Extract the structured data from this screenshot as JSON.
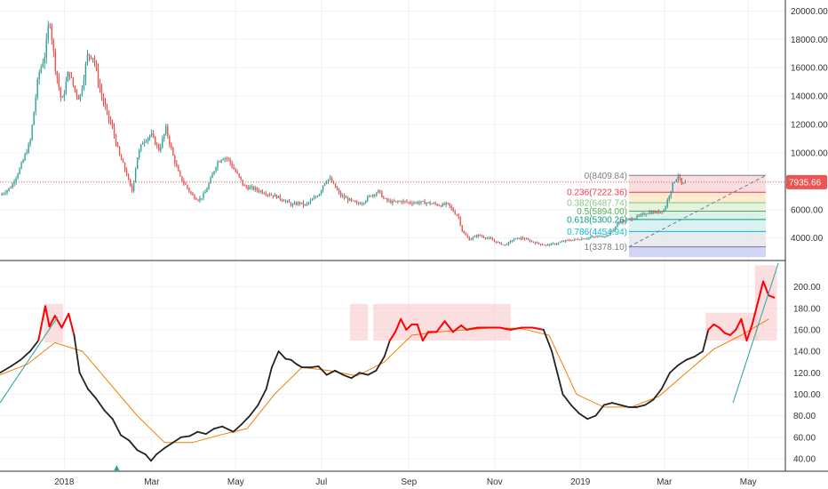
{
  "chart_data": [
    {
      "type": "candlestick",
      "panel": "price",
      "yticks": [
        "20000.00",
        "18000.00",
        "16000.00",
        "14000.00",
        "12000.00",
        "10000.00",
        "8000.00",
        "6000.00",
        "4000.00"
      ],
      "ylim": [
        2600,
        20400
      ],
      "current_price_label": "7935.66",
      "current_price": 7935.66,
      "colors": {
        "up": "#26a69a",
        "down": "#ef5350",
        "wick_up": "#1b7f72",
        "wick_down": "#c62828"
      },
      "x_range_days": [
        0,
        600
      ],
      "series_points": [
        [
          0,
          7000
        ],
        [
          8,
          7600
        ],
        [
          15,
          9000
        ],
        [
          22,
          10800
        ],
        [
          28,
          15500
        ],
        [
          33,
          17000
        ],
        [
          36,
          19600
        ],
        [
          40,
          16200
        ],
        [
          45,
          13500
        ],
        [
          50,
          15800
        ],
        [
          54,
          14500
        ],
        [
          58,
          13800
        ],
        [
          64,
          17000
        ],
        [
          68,
          16800
        ],
        [
          72,
          14800
        ],
        [
          77,
          13000
        ],
        [
          82,
          11700
        ],
        [
          87,
          9800
        ],
        [
          92,
          8600
        ],
        [
          96,
          7200
        ],
        [
          100,
          9700
        ],
        [
          104,
          10800
        ],
        [
          110,
          11300
        ],
        [
          116,
          10200
        ],
        [
          121,
          11700
        ],
        [
          126,
          9800
        ],
        [
          131,
          8300
        ],
        [
          136,
          7600
        ],
        [
          140,
          7000
        ],
        [
          145,
          6700
        ],
        [
          149,
          7100
        ],
        [
          153,
          8000
        ],
        [
          158,
          9300
        ],
        [
          162,
          9700
        ],
        [
          166,
          9600
        ],
        [
          170,
          8900
        ],
        [
          174,
          8300
        ],
        [
          178,
          7600
        ],
        [
          184,
          7500
        ],
        [
          190,
          7300
        ],
        [
          196,
          7100
        ],
        [
          202,
          6900
        ],
        [
          208,
          6600
        ],
        [
          213,
          6300
        ],
        [
          218,
          6500
        ],
        [
          222,
          6300
        ],
        [
          228,
          6700
        ],
        [
          233,
          7200
        ],
        [
          236,
          7900
        ],
        [
          240,
          8200
        ],
        [
          244,
          7600
        ],
        [
          248,
          7000
        ],
        [
          254,
          6700
        ],
        [
          260,
          6400
        ],
        [
          264,
          6500
        ],
        [
          270,
          7000
        ],
        [
          276,
          7300
        ],
        [
          280,
          6700
        ],
        [
          286,
          6500
        ],
        [
          292,
          6600
        ],
        [
          298,
          6500
        ],
        [
          304,
          6500
        ],
        [
          310,
          6500
        ],
        [
          316,
          6400
        ],
        [
          322,
          6300
        ],
        [
          326,
          6400
        ],
        [
          331,
          5800
        ],
        [
          334,
          5500
        ],
        [
          337,
          4400
        ],
        [
          342,
          3900
        ],
        [
          348,
          4200
        ],
        [
          355,
          4000
        ],
        [
          362,
          3700
        ],
        [
          367,
          3500
        ],
        [
          370,
          3600
        ],
        [
          374,
          3900
        ],
        [
          380,
          4000
        ],
        [
          386,
          3800
        ],
        [
          392,
          3600
        ],
        [
          398,
          3500
        ],
        [
          405,
          3600
        ],
        [
          412,
          3800
        ],
        [
          420,
          3900
        ],
        [
          428,
          4000
        ],
        [
          435,
          4100
        ],
        [
          443,
          4200
        ],
        [
          451,
          5100
        ],
        [
          458,
          5300
        ],
        [
          465,
          5500
        ],
        [
          472,
          5800
        ],
        [
          479,
          5800
        ],
        [
          484,
          6000
        ],
        [
          488,
          7200
        ],
        [
          491,
          8000
        ],
        [
          494,
          8400
        ],
        [
          497,
          7700
        ],
        [
          500,
          7935
        ]
      ]
    },
    {
      "type": "line",
      "panel": "indicator",
      "yticks": [
        "200.00",
        "180.00",
        "160.00",
        "140.00",
        "120.00",
        "100.00",
        "80.00",
        "60.00",
        "40.00"
      ],
      "ylim": [
        30,
        222
      ],
      "series": [
        {
          "color": "#222222",
          "highlight_color": "#ff0000"
        },
        {
          "color": "#f57c00"
        }
      ],
      "series_points": [
        [
          0,
          120
        ],
        [
          8,
          126
        ],
        [
          15,
          132
        ],
        [
          22,
          140
        ],
        [
          28,
          150
        ],
        [
          33,
          182
        ],
        [
          36,
          163
        ],
        [
          40,
          173
        ],
        [
          45,
          162
        ],
        [
          50,
          175
        ],
        [
          54,
          155
        ],
        [
          58,
          120
        ],
        [
          64,
          105
        ],
        [
          70,
          96
        ],
        [
          76,
          85
        ],
        [
          82,
          77
        ],
        [
          88,
          62
        ],
        [
          94,
          57
        ],
        [
          100,
          48
        ],
        [
          106,
          44
        ],
        [
          110,
          38
        ],
        [
          114,
          44
        ],
        [
          120,
          50
        ],
        [
          126,
          55
        ],
        [
          132,
          60
        ],
        [
          138,
          61
        ],
        [
          144,
          65
        ],
        [
          150,
          63
        ],
        [
          156,
          68
        ],
        [
          162,
          70
        ],
        [
          170,
          65
        ],
        [
          176,
          72
        ],
        [
          182,
          80
        ],
        [
          188,
          90
        ],
        [
          194,
          105
        ],
        [
          198,
          125
        ],
        [
          203,
          140
        ],
        [
          208,
          133
        ],
        [
          212,
          132
        ],
        [
          216,
          128
        ],
        [
          220,
          125
        ],
        [
          226,
          125
        ],
        [
          232,
          126
        ],
        [
          238,
          118
        ],
        [
          244,
          122
        ],
        [
          250,
          118
        ],
        [
          256,
          115
        ],
        [
          262,
          120
        ],
        [
          268,
          118
        ],
        [
          274,
          122
        ],
        [
          280,
          135
        ],
        [
          284,
          150
        ],
        [
          288,
          158
        ],
        [
          292,
          170
        ],
        [
          296,
          160
        ],
        [
          300,
          165
        ],
        [
          304,
          165
        ],
        [
          308,
          150
        ],
        [
          312,
          158
        ],
        [
          318,
          158
        ],
        [
          324,
          168
        ],
        [
          330,
          158
        ],
        [
          336,
          164
        ],
        [
          340,
          160
        ],
        [
          348,
          162
        ],
        [
          356,
          162
        ],
        [
          364,
          162
        ],
        [
          372,
          160
        ],
        [
          380,
          162
        ],
        [
          388,
          162
        ],
        [
          396,
          160
        ],
        [
          402,
          140
        ],
        [
          406,
          120
        ],
        [
          410,
          100
        ],
        [
          416,
          90
        ],
        [
          422,
          82
        ],
        [
          428,
          77
        ],
        [
          434,
          80
        ],
        [
          440,
          90
        ],
        [
          446,
          92
        ],
        [
          452,
          90
        ],
        [
          458,
          88
        ],
        [
          464,
          88
        ],
        [
          470,
          90
        ],
        [
          476,
          95
        ],
        [
          482,
          105
        ],
        [
          488,
          120
        ],
        [
          494,
          127
        ],
        [
          500,
          132
        ],
        [
          506,
          135
        ],
        [
          512,
          140
        ],
        [
          516,
          160
        ],
        [
          520,
          165
        ],
        [
          524,
          162
        ],
        [
          528,
          157
        ],
        [
          532,
          155
        ],
        [
          536,
          160
        ],
        [
          540,
          170
        ],
        [
          544,
          150
        ],
        [
          548,
          165
        ],
        [
          552,
          185
        ],
        [
          556,
          205
        ],
        [
          560,
          192
        ],
        [
          564,
          190
        ]
      ],
      "signal_points": [
        [
          0,
          118
        ],
        [
          20,
          128
        ],
        [
          40,
          148
        ],
        [
          60,
          140
        ],
        [
          80,
          110
        ],
        [
          100,
          80
        ],
        [
          120,
          55
        ],
        [
          140,
          55
        ],
        [
          160,
          62
        ],
        [
          180,
          68
        ],
        [
          200,
          100
        ],
        [
          220,
          125
        ],
        [
          240,
          122
        ],
        [
          260,
          117
        ],
        [
          280,
          130
        ],
        [
          300,
          155
        ],
        [
          320,
          158
        ],
        [
          340,
          160
        ],
        [
          360,
          162
        ],
        [
          380,
          161
        ],
        [
          400,
          155
        ],
        [
          420,
          100
        ],
        [
          440,
          88
        ],
        [
          460,
          88
        ],
        [
          480,
          98
        ],
        [
          500,
          120
        ],
        [
          520,
          142
        ],
        [
          540,
          155
        ],
        [
          560,
          170
        ]
      ]
    }
  ],
  "x_axis": {
    "labels": [
      "2018",
      "Mar",
      "May",
      "Jul",
      "Sep",
      "Nov",
      "2019",
      "Mar",
      "May"
    ]
  },
  "fibonacci": {
    "levels": [
      {
        "label": "0(8409.84)",
        "price": 8409.84,
        "color": "#7e7e7e"
      },
      {
        "label": "0.236(7222.36)",
        "price": 7222.36,
        "color": "#f23645"
      },
      {
        "label": "0.382(6487.74)",
        "price": 6487.74,
        "color": "#81c784"
      },
      {
        "label": "0.5(5894.00)",
        "price": 5894.0,
        "color": "#4caf50"
      },
      {
        "label": "0.618(5300.26)",
        "price": 5300.26,
        "color": "#089981"
      },
      {
        "label": "0.786(4454.94)",
        "price": 4454.94,
        "color": "#00bcd4"
      },
      {
        "label": "1(3378.10)",
        "price": 3378.1,
        "color": "#787b86"
      }
    ]
  }
}
